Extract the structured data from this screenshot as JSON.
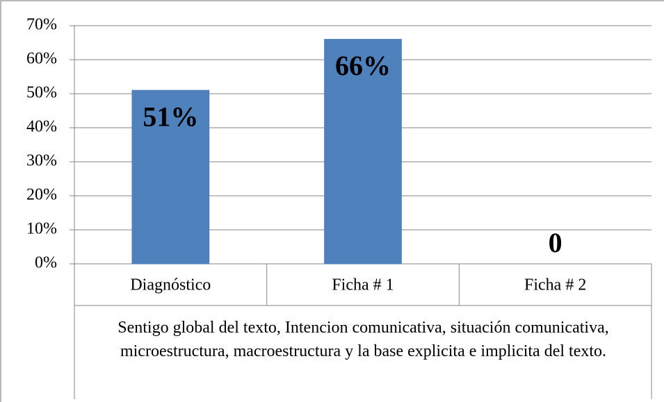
{
  "chart_data": {
    "type": "bar",
    "categories": [
      "Diagnóstico",
      "Ficha # 1",
      "Ficha # 2"
    ],
    "values": [
      51,
      66,
      0
    ],
    "value_labels": [
      "51%",
      "66%",
      "0"
    ],
    "color": "#4f81bd",
    "group_label": "Sentigo global del texto, Intencion comunicativa, situación comunicativa, microestructura, macroestructura y la base explicita e implicita del texto.",
    "ylim": [
      0,
      70
    ],
    "yticks": [
      {
        "value": 0,
        "label": "0%"
      },
      {
        "value": 10,
        "label": "10%"
      },
      {
        "value": 20,
        "label": "20%"
      },
      {
        "value": 30,
        "label": "30%"
      },
      {
        "value": 40,
        "label": "40%"
      },
      {
        "value": 50,
        "label": "50%"
      },
      {
        "value": 60,
        "label": "60%"
      },
      {
        "value": 70,
        "label": "70%"
      }
    ],
    "grid": true
  }
}
